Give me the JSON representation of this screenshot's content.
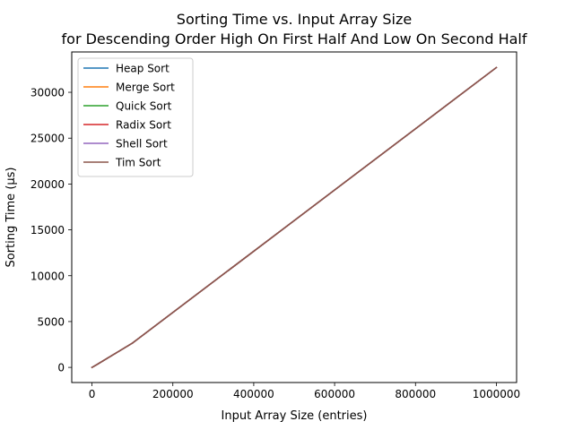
{
  "chart_data": {
    "type": "line",
    "title": "Sorting Time vs. Input Array Size\nfor Descending Order High On First Half And Low On Second Half",
    "title_lines": [
      "Sorting Time vs. Input Array Size",
      "for Descending Order High On First Half And Low On Second Half"
    ],
    "xlabel": "Input Array Size (entries)",
    "ylabel": "Sorting Time (µs)",
    "xlim": [
      -50000,
      1050000
    ],
    "ylim": [
      -1650,
      34400
    ],
    "xticks": [
      0,
      200000,
      400000,
      600000,
      800000,
      1000000
    ],
    "xtick_labels": [
      "0",
      "200000",
      "400000",
      "600000",
      "800000",
      "1000000"
    ],
    "yticks": [
      0,
      5000,
      10000,
      15000,
      20000,
      25000,
      30000
    ],
    "ytick_labels": [
      "0",
      "5000",
      "10000",
      "15000",
      "20000",
      "25000",
      "30000"
    ],
    "grid": false,
    "legend_position": "top-left",
    "x": [
      1,
      10,
      100,
      1000,
      10000,
      100000,
      1000000
    ],
    "series": [
      {
        "name": "Heap Sort",
        "color": "#1f77b4",
        "values": [
          0,
          0,
          2,
          20,
          250,
          2650,
          32700
        ]
      },
      {
        "name": "Merge Sort",
        "color": "#ff7f0e",
        "values": [
          0,
          0,
          2,
          20,
          250,
          2650,
          32700
        ]
      },
      {
        "name": "Quick Sort",
        "color": "#2ca02c",
        "values": [
          0,
          0,
          2,
          20,
          250,
          2650,
          32700
        ]
      },
      {
        "name": "Radix Sort",
        "color": "#d62728",
        "values": [
          0,
          0,
          2,
          20,
          250,
          2650,
          32700
        ]
      },
      {
        "name": "Shell Sort",
        "color": "#9467bd",
        "values": [
          0,
          0,
          2,
          20,
          250,
          2650,
          32700
        ]
      },
      {
        "name": "Tim Sort",
        "color": "#8c564b",
        "values": [
          0,
          0,
          2,
          20,
          250,
          2650,
          32700
        ]
      }
    ]
  }
}
